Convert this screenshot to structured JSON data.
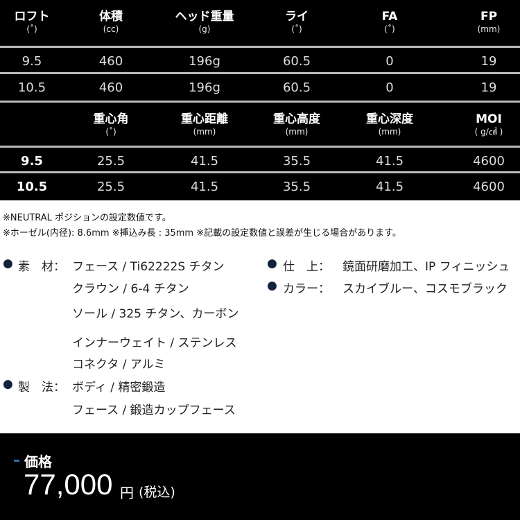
{
  "table1": {
    "headers": [
      {
        "t": "ロフト",
        "u": "(˚)"
      },
      {
        "t": "体積",
        "u": "(cc)"
      },
      {
        "t": "ヘッド重量",
        "u": "(g)"
      },
      {
        "t": "ライ",
        "u": "(˚)"
      },
      {
        "t": "FA",
        "u": "(˚)"
      },
      {
        "t": "FP",
        "u": "(mm)"
      }
    ],
    "rows": [
      [
        "9.5",
        "460",
        "196g",
        "60.5",
        "0",
        "19"
      ],
      [
        "10.5",
        "460",
        "196g",
        "60.5",
        "0",
        "19"
      ]
    ]
  },
  "table2": {
    "headers": [
      {
        "t": "",
        "u": ""
      },
      {
        "t": "重心角",
        "u": "(˚)"
      },
      {
        "t": "重心距離",
        "u": "(mm)"
      },
      {
        "t": "重心高度",
        "u": "(mm)"
      },
      {
        "t": "重心深度",
        "u": "(mm)"
      },
      {
        "t": "MOI",
        "u": "( g/㎠ )"
      }
    ],
    "rows": [
      [
        "9.5",
        "25.5",
        "41.5",
        "35.5",
        "41.5",
        "4600"
      ],
      [
        "10.5",
        "25.5",
        "41.5",
        "35.5",
        "41.5",
        "4600"
      ]
    ]
  },
  "notes": [
    "※NEUTRAL ポジションの設定数値です。",
    "※ホーゼル(内径): 8.6mm  ※挿込み長 : 35mm  ※記載の設定数値と誤差が生じる場合があります。"
  ],
  "specs": {
    "bullet": "●",
    "material_label": "素　材：",
    "material": [
      "フェース / Ti62222S チタン",
      "クラウン / 6-4 チタン",
      "ソール / 325 チタン、カーボン",
      "インナーウェイト / ステンレス",
      "コネクタ / アルミ"
    ],
    "method_label": "製　法：",
    "method": [
      "ボディ / 精密鍛造",
      "フェース / 鍛造カップフェース"
    ],
    "finish_label": "仕　上：",
    "finish": "鏡面研磨加工、IP フィニッシュ",
    "color_label": "カラー：",
    "color": "スカイブルー、コスモブラック"
  },
  "price": {
    "label": "価格",
    "amount": "77,000",
    "yen": "円",
    "tax": "(税込)"
  },
  "colors": {
    "accent": "#2a6fb5",
    "bullet": "#14233d"
  }
}
